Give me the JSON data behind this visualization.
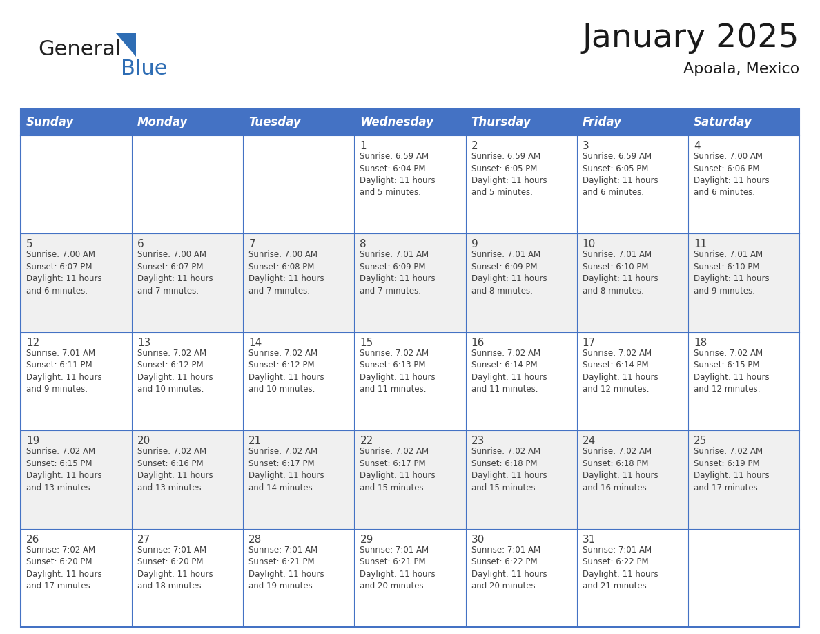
{
  "title": "January 2025",
  "subtitle": "Apoala, Mexico",
  "header_color": "#4472C4",
  "header_text_color": "#FFFFFF",
  "cell_bg_white": "#FFFFFF",
  "cell_bg_gray": "#F0F0F0",
  "border_color": "#4472C4",
  "text_color": "#404040",
  "days_of_week": [
    "Sunday",
    "Monday",
    "Tuesday",
    "Wednesday",
    "Thursday",
    "Friday",
    "Saturday"
  ],
  "calendar_data": [
    [
      {
        "day": "",
        "info": ""
      },
      {
        "day": "",
        "info": ""
      },
      {
        "day": "",
        "info": ""
      },
      {
        "day": "1",
        "info": "Sunrise: 6:59 AM\nSunset: 6:04 PM\nDaylight: 11 hours\nand 5 minutes."
      },
      {
        "day": "2",
        "info": "Sunrise: 6:59 AM\nSunset: 6:05 PM\nDaylight: 11 hours\nand 5 minutes."
      },
      {
        "day": "3",
        "info": "Sunrise: 6:59 AM\nSunset: 6:05 PM\nDaylight: 11 hours\nand 6 minutes."
      },
      {
        "day": "4",
        "info": "Sunrise: 7:00 AM\nSunset: 6:06 PM\nDaylight: 11 hours\nand 6 minutes."
      }
    ],
    [
      {
        "day": "5",
        "info": "Sunrise: 7:00 AM\nSunset: 6:07 PM\nDaylight: 11 hours\nand 6 minutes."
      },
      {
        "day": "6",
        "info": "Sunrise: 7:00 AM\nSunset: 6:07 PM\nDaylight: 11 hours\nand 7 minutes."
      },
      {
        "day": "7",
        "info": "Sunrise: 7:00 AM\nSunset: 6:08 PM\nDaylight: 11 hours\nand 7 minutes."
      },
      {
        "day": "8",
        "info": "Sunrise: 7:01 AM\nSunset: 6:09 PM\nDaylight: 11 hours\nand 7 minutes."
      },
      {
        "day": "9",
        "info": "Sunrise: 7:01 AM\nSunset: 6:09 PM\nDaylight: 11 hours\nand 8 minutes."
      },
      {
        "day": "10",
        "info": "Sunrise: 7:01 AM\nSunset: 6:10 PM\nDaylight: 11 hours\nand 8 minutes."
      },
      {
        "day": "11",
        "info": "Sunrise: 7:01 AM\nSunset: 6:10 PM\nDaylight: 11 hours\nand 9 minutes."
      }
    ],
    [
      {
        "day": "12",
        "info": "Sunrise: 7:01 AM\nSunset: 6:11 PM\nDaylight: 11 hours\nand 9 minutes."
      },
      {
        "day": "13",
        "info": "Sunrise: 7:02 AM\nSunset: 6:12 PM\nDaylight: 11 hours\nand 10 minutes."
      },
      {
        "day": "14",
        "info": "Sunrise: 7:02 AM\nSunset: 6:12 PM\nDaylight: 11 hours\nand 10 minutes."
      },
      {
        "day": "15",
        "info": "Sunrise: 7:02 AM\nSunset: 6:13 PM\nDaylight: 11 hours\nand 11 minutes."
      },
      {
        "day": "16",
        "info": "Sunrise: 7:02 AM\nSunset: 6:14 PM\nDaylight: 11 hours\nand 11 minutes."
      },
      {
        "day": "17",
        "info": "Sunrise: 7:02 AM\nSunset: 6:14 PM\nDaylight: 11 hours\nand 12 minutes."
      },
      {
        "day": "18",
        "info": "Sunrise: 7:02 AM\nSunset: 6:15 PM\nDaylight: 11 hours\nand 12 minutes."
      }
    ],
    [
      {
        "day": "19",
        "info": "Sunrise: 7:02 AM\nSunset: 6:15 PM\nDaylight: 11 hours\nand 13 minutes."
      },
      {
        "day": "20",
        "info": "Sunrise: 7:02 AM\nSunset: 6:16 PM\nDaylight: 11 hours\nand 13 minutes."
      },
      {
        "day": "21",
        "info": "Sunrise: 7:02 AM\nSunset: 6:17 PM\nDaylight: 11 hours\nand 14 minutes."
      },
      {
        "day": "22",
        "info": "Sunrise: 7:02 AM\nSunset: 6:17 PM\nDaylight: 11 hours\nand 15 minutes."
      },
      {
        "day": "23",
        "info": "Sunrise: 7:02 AM\nSunset: 6:18 PM\nDaylight: 11 hours\nand 15 minutes."
      },
      {
        "day": "24",
        "info": "Sunrise: 7:02 AM\nSunset: 6:18 PM\nDaylight: 11 hours\nand 16 minutes."
      },
      {
        "day": "25",
        "info": "Sunrise: 7:02 AM\nSunset: 6:19 PM\nDaylight: 11 hours\nand 17 minutes."
      }
    ],
    [
      {
        "day": "26",
        "info": "Sunrise: 7:02 AM\nSunset: 6:20 PM\nDaylight: 11 hours\nand 17 minutes."
      },
      {
        "day": "27",
        "info": "Sunrise: 7:01 AM\nSunset: 6:20 PM\nDaylight: 11 hours\nand 18 minutes."
      },
      {
        "day": "28",
        "info": "Sunrise: 7:01 AM\nSunset: 6:21 PM\nDaylight: 11 hours\nand 19 minutes."
      },
      {
        "day": "29",
        "info": "Sunrise: 7:01 AM\nSunset: 6:21 PM\nDaylight: 11 hours\nand 20 minutes."
      },
      {
        "day": "30",
        "info": "Sunrise: 7:01 AM\nSunset: 6:22 PM\nDaylight: 11 hours\nand 20 minutes."
      },
      {
        "day": "31",
        "info": "Sunrise: 7:01 AM\nSunset: 6:22 PM\nDaylight: 11 hours\nand 21 minutes."
      },
      {
        "day": "",
        "info": ""
      }
    ]
  ],
  "logo_general_color": "#222222",
  "logo_blue_color": "#2E6DB4",
  "title_fontsize": 34,
  "subtitle_fontsize": 16,
  "header_fontsize": 12,
  "day_num_fontsize": 11,
  "info_fontsize": 8.5,
  "fig_width": 11.88,
  "fig_height": 9.18
}
